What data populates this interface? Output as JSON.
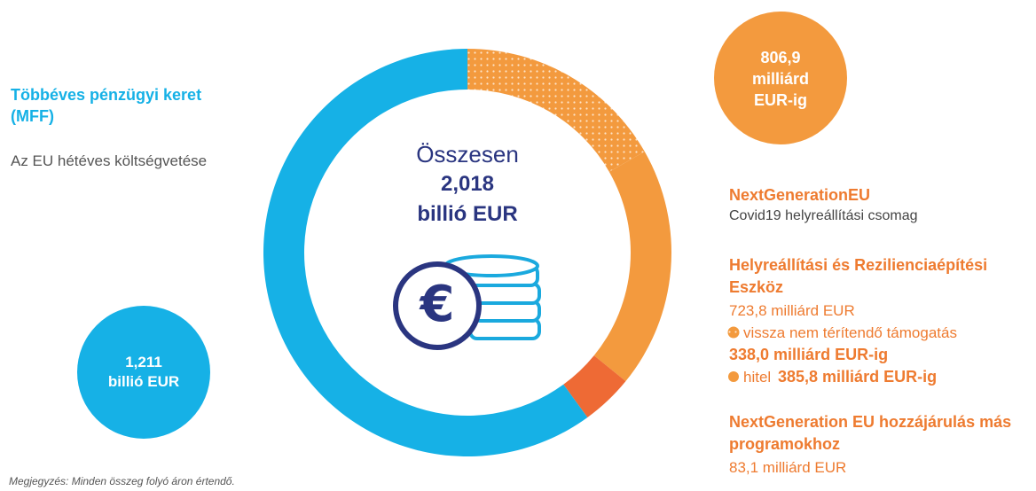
{
  "chart_data": {
    "type": "donut",
    "values": [
      338.0,
      385.8,
      83.1,
      1211
    ],
    "colors": [
      "#f39a3e",
      "#f39a3e",
      "#ee6a35",
      "#16b1e6"
    ],
    "patterns": [
      "dots",
      null,
      null,
      null
    ]
  },
  "total": {
    "label": "Összesen",
    "amount": "2,018",
    "unit": "billió EUR"
  },
  "mff": {
    "title": "Többéves pénzügyi keret (MFF)",
    "description": "Az EU hétéves költségvetése",
    "bubble_amount": "1,211",
    "bubble_unit": "billió EUR"
  },
  "ngeu": {
    "bubble_lines": [
      "806,9",
      "milliárd",
      "EUR-ig"
    ],
    "title": "NextGenerationEU",
    "description": "Covid19 helyreállítási csomag"
  },
  "rrf": {
    "title": "Helyreállítási és Rezilienciaépítési Eszköz",
    "amount": "723,8 milliárd EUR",
    "grants_label": "vissza nem térítendő támogatás",
    "grants_amount": "338,0 milliárd EUR-ig",
    "loans_label": "hitel",
    "loans_amount": "385,8 milliárd EUR-ig"
  },
  "other": {
    "title": "NextGeneration EU hozzájárulás más programokhoz",
    "amount": "83,1 milliárd EUR"
  },
  "note": "Megjegyzés: Minden összeg folyó áron értendő."
}
